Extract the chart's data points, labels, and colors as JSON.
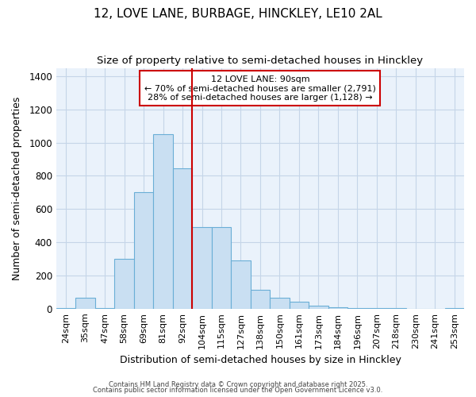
{
  "title1": "12, LOVE LANE, BURBAGE, HINCKLEY, LE10 2AL",
  "title2": "Size of property relative to semi-detached houses in Hinckley",
  "xlabel": "Distribution of semi-detached houses by size in Hinckley",
  "ylabel": "Number of semi-detached properties",
  "categories": [
    "24sqm",
    "35sqm",
    "47sqm",
    "58sqm",
    "69sqm",
    "81sqm",
    "92sqm",
    "104sqm",
    "115sqm",
    "127sqm",
    "138sqm",
    "150sqm",
    "161sqm",
    "173sqm",
    "184sqm",
    "196sqm",
    "207sqm",
    "218sqm",
    "230sqm",
    "241sqm",
    "253sqm"
  ],
  "values": [
    5,
    65,
    5,
    300,
    700,
    1050,
    845,
    490,
    490,
    290,
    115,
    65,
    40,
    20,
    10,
    5,
    5,
    5,
    0,
    0,
    5
  ],
  "bar_color": "#c9dff2",
  "bar_edge_color": "#6aaed6",
  "grid_color": "#c5d5e8",
  "bg_color": "#ffffff",
  "plot_bg_color": "#eaf2fb",
  "vline_x": 6.5,
  "vline_color": "#cc0000",
  "annotation_title": "12 LOVE LANE: 90sqm",
  "annotation_line1": "← 70% of semi-detached houses are smaller (2,791)",
  "annotation_line2": "28% of semi-detached houses are larger (1,128) →",
  "annotation_box_color": "#ffffff",
  "annotation_box_edge": "#cc0000",
  "ylim": [
    0,
    1450
  ],
  "yticks": [
    0,
    200,
    400,
    600,
    800,
    1000,
    1200,
    1400
  ],
  "footer1": "Contains HM Land Registry data © Crown copyright and database right 2025.",
  "footer2": "Contains public sector information licensed under the Open Government Licence v3.0."
}
